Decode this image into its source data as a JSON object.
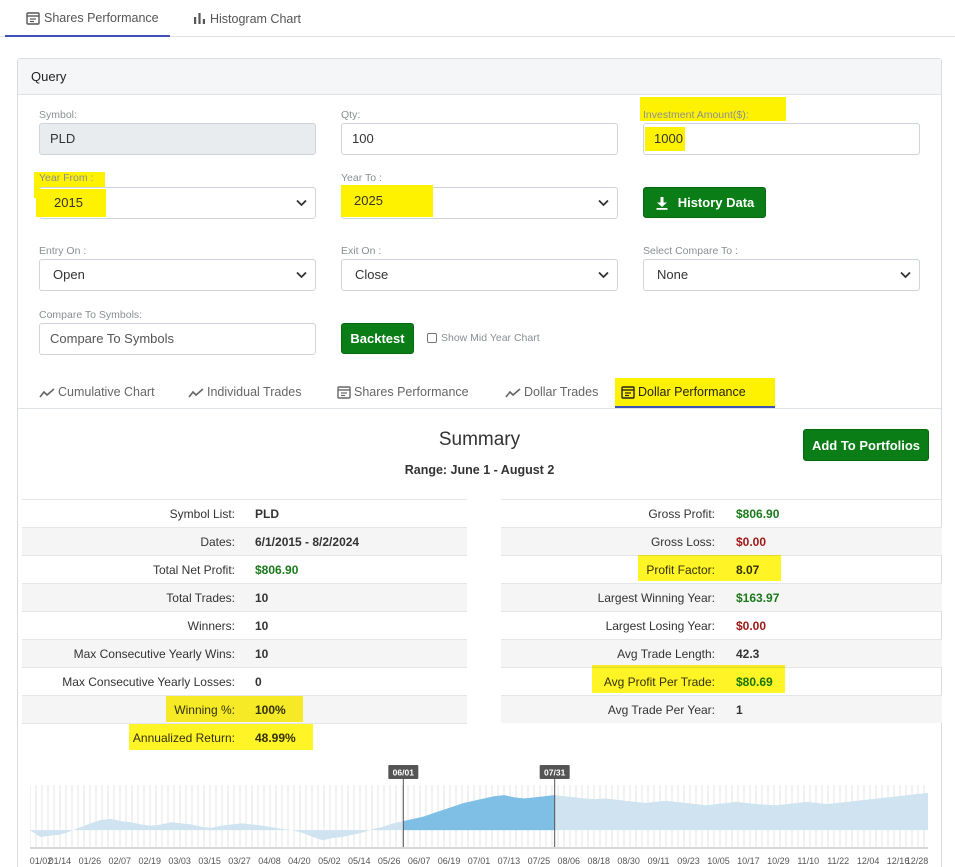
{
  "top_tabs": [
    {
      "label": "Shares Performance",
      "active": true,
      "icon": "calendar-icon"
    },
    {
      "label": "Histogram Chart",
      "active": false,
      "icon": "bar-chart-icon"
    }
  ],
  "query": {
    "title": "Query",
    "symbol": {
      "label": "Symbol:",
      "value": "PLD"
    },
    "qty": {
      "label": "Qty:",
      "value": "100"
    },
    "investment": {
      "label": "Investment Amount($):",
      "value": "1000"
    },
    "year_from": {
      "label": "Year From :",
      "value": "2015"
    },
    "year_to": {
      "label": "Year To :",
      "value": "2025"
    },
    "history_button": "History Data",
    "entry_on": {
      "label": "Entry On :",
      "value": "Open"
    },
    "exit_on": {
      "label": "Exit On :",
      "value": "Close"
    },
    "compare_to": {
      "label": "Select Compare To :",
      "value": "None"
    },
    "compare_symbols": {
      "label": "Compare To Symbols:",
      "placeholder": "Compare To Symbols"
    },
    "backtest_button": "Backtest",
    "show_mid_year": "Show Mid Year Chart"
  },
  "sub_tabs": [
    {
      "label": "Cumulative Chart",
      "icon": "line-chart-icon"
    },
    {
      "label": "Individual Trades",
      "icon": "line-chart-icon"
    },
    {
      "label": "Shares Performance",
      "icon": "calendar-icon"
    },
    {
      "label": "Dollar Trades",
      "icon": "line-chart-icon"
    },
    {
      "label": "Dollar Performance",
      "icon": "calendar-icon",
      "active": true
    }
  ],
  "summary": {
    "title": "Summary",
    "range": "Range: June 1 - August 2",
    "add_button": "Add To Portfolios",
    "left": [
      {
        "label": "Symbol List:",
        "value": "PLD",
        "color": "default"
      },
      {
        "label": "Dates:",
        "value": "6/1/2015 - 8/2/2024",
        "color": "default"
      },
      {
        "label": "Total Net Profit:",
        "value": "$806.90",
        "color": "green"
      },
      {
        "label": "Total Trades:",
        "value": "10",
        "color": "default"
      },
      {
        "label": "Winners:",
        "value": "10",
        "color": "default"
      },
      {
        "label": "Max Consecutive Yearly Wins:",
        "value": "10",
        "color": "default"
      },
      {
        "label": "Max Consecutive Yearly Losses:",
        "value": "0",
        "color": "default"
      },
      {
        "label": "Winning %:",
        "value": "100%",
        "color": "default",
        "highlight": true
      },
      {
        "label": "Annualized Return:",
        "value": "48.99%",
        "color": "default",
        "highlight": true
      }
    ],
    "right": [
      {
        "label": "Gross Profit:",
        "value": "$806.90",
        "color": "green"
      },
      {
        "label": "Gross Loss:",
        "value": "$0.00",
        "color": "red"
      },
      {
        "label": "Profit Factor:",
        "value": "8.07",
        "color": "default",
        "highlight": true
      },
      {
        "label": "Largest Winning Year:",
        "value": "$163.97",
        "color": "green"
      },
      {
        "label": "Largest Losing Year:",
        "value": "$0.00",
        "color": "red"
      },
      {
        "label": "Avg Trade Length:",
        "value": "42.3",
        "color": "default"
      },
      {
        "label": "Avg Profit Per Trade:",
        "value": "$80.69",
        "color": "green",
        "highlight": true
      },
      {
        "label": "Avg Trade Per Year:",
        "value": "1",
        "color": "default"
      }
    ]
  },
  "chart_data": {
    "type": "area",
    "range_start_label": "06/01",
    "range_end_label": "07/31",
    "x_ticks": [
      "01/02",
      "01/14",
      "01/26",
      "02/07",
      "02/19",
      "03/03",
      "03/15",
      "03/27",
      "04/08",
      "04/20",
      "05/02",
      "05/14",
      "05/26",
      "06/07",
      "06/19",
      "07/01",
      "07/13",
      "07/25",
      "08/06",
      "08/18",
      "08/30",
      "09/11",
      "09/23",
      "10/05",
      "10/17",
      "10/29",
      "11/10",
      "11/22",
      "12/04",
      "12/16",
      "12/28"
    ],
    "values": [
      0.0,
      -0.12,
      -0.1,
      -0.08,
      -0.02,
      0.05,
      0.12,
      0.18,
      0.2,
      0.16,
      0.14,
      0.1,
      0.08,
      0.1,
      0.14,
      0.12,
      0.1,
      0.06,
      0.04,
      0.08,
      0.1,
      0.12,
      0.1,
      0.08,
      0.05,
      0.02,
      0.0,
      -0.05,
      -0.12,
      -0.18,
      -0.14,
      -0.12,
      -0.08,
      -0.04,
      0.02,
      0.06,
      0.12,
      0.16,
      0.2,
      0.24,
      0.3,
      0.36,
      0.42,
      0.48,
      0.52,
      0.56,
      0.6,
      0.62,
      0.58,
      0.56,
      0.58,
      0.6,
      0.62,
      0.6,
      0.58,
      0.56,
      0.55,
      0.56,
      0.54,
      0.52,
      0.5,
      0.48,
      0.5,
      0.52,
      0.5,
      0.48,
      0.46,
      0.44,
      0.46,
      0.48,
      0.5,
      0.48,
      0.46,
      0.45,
      0.44,
      0.46,
      0.48,
      0.5,
      0.48,
      0.46,
      0.48,
      0.5,
      0.52,
      0.54,
      0.56,
      0.58,
      0.6,
      0.62,
      0.64,
      0.66
    ],
    "ylim": [
      -0.3,
      0.8
    ],
    "colors": {
      "fill": "#cfe3f0",
      "fill_active": "#7fbfe6",
      "gridline": "#dedede",
      "handle": "#555555"
    }
  }
}
